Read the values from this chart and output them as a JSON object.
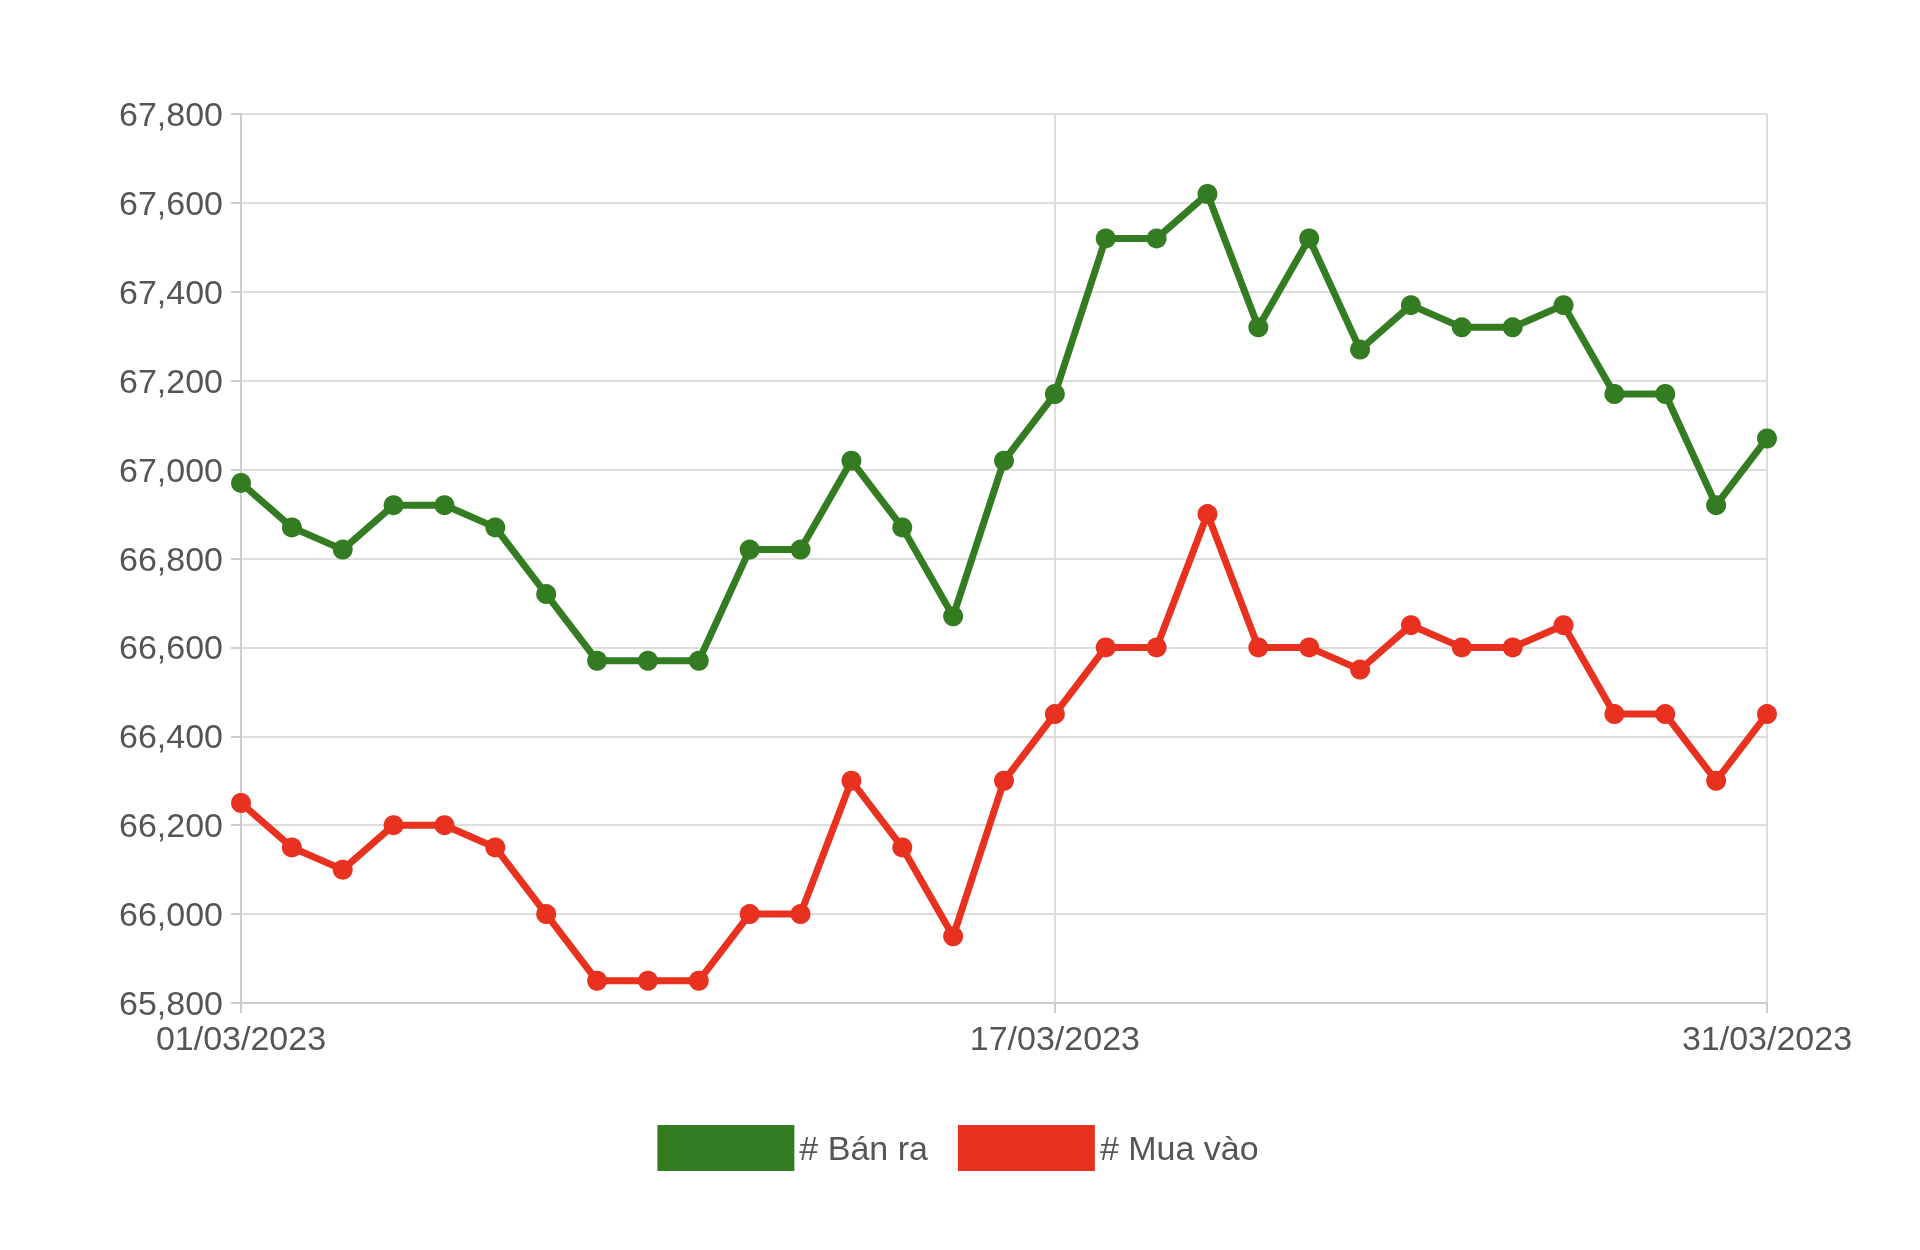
{
  "chart_data": {
    "type": "line",
    "categories": [
      "01/03/2023",
      null,
      null,
      null,
      null,
      null,
      null,
      null,
      null,
      null,
      null,
      null,
      null,
      null,
      null,
      null,
      "17/03/2023",
      null,
      null,
      null,
      null,
      null,
      null,
      null,
      null,
      null,
      null,
      null,
      null,
      null,
      "31/03/2023"
    ],
    "series": [
      {
        "name": "# Bán ra",
        "color": "#347c22",
        "values": [
          66970,
          66870,
          66820,
          66920,
          66920,
          66870,
          66720,
          66570,
          66570,
          66570,
          66820,
          66820,
          67020,
          66870,
          66670,
          67020,
          67170,
          67520,
          67520,
          67620,
          67320,
          67520,
          67270,
          67370,
          67320,
          67320,
          67370,
          67170,
          67170,
          66920,
          67070
        ]
      },
      {
        "name": "# Mua vào",
        "color": "#e8321f",
        "values": [
          66250,
          66150,
          66100,
          66200,
          66200,
          66150,
          66000,
          65850,
          65850,
          65850,
          66000,
          66000,
          66300,
          66150,
          65950,
          66300,
          66450,
          66600,
          66600,
          66900,
          66600,
          66600,
          66550,
          66650,
          66600,
          66600,
          66650,
          66450,
          66450,
          66300,
          66450
        ]
      }
    ],
    "ylim": [
      65800,
      67800
    ],
    "yticks": [
      {
        "value": 65800,
        "label": "65,800"
      },
      {
        "value": 66000,
        "label": "66,000"
      },
      {
        "value": 66200,
        "label": "66,200"
      },
      {
        "value": 66400,
        "label": "66,400"
      },
      {
        "value": 66600,
        "label": "66,600"
      },
      {
        "value": 66800,
        "label": "66,800"
      },
      {
        "value": 67000,
        "label": "67,000"
      },
      {
        "value": 67200,
        "label": "67,200"
      },
      {
        "value": 67400,
        "label": "67,400"
      },
      {
        "value": 67600,
        "label": "67,600"
      },
      {
        "value": 67800,
        "label": "67,800"
      }
    ],
    "grid": true,
    "legend": "bottom",
    "marker": "circle",
    "line_style": "solid"
  }
}
